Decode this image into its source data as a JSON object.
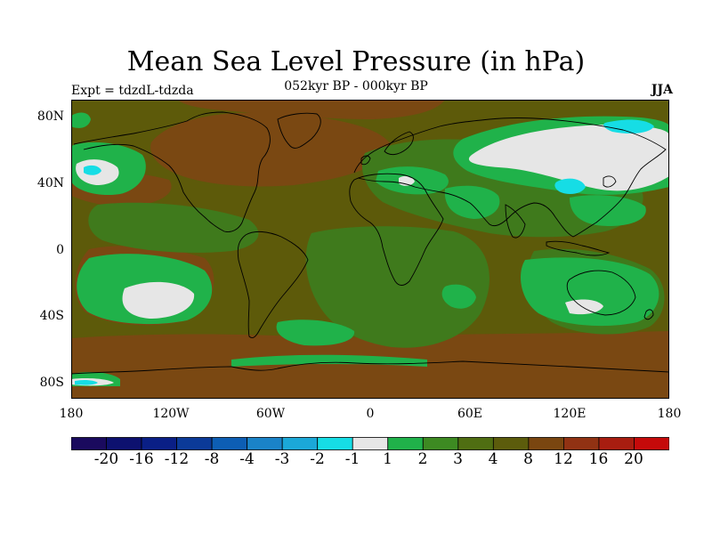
{
  "title": "Mean Sea Level Pressure (in hPa)",
  "subtitle": "052kyr BP - 000kyr BP",
  "experiment": "Expt = tdzdL-tdzda",
  "season": "JJA",
  "lat_labels": [
    "80N",
    "40N",
    "0",
    "40S",
    "80S"
  ],
  "lon_labels": [
    "180",
    "120W",
    "60W",
    "0",
    "60E",
    "120E",
    "180"
  ],
  "colorbar": {
    "labels": [
      "-20",
      "-16",
      "-12",
      "-8",
      "-4",
      "-3",
      "-2",
      "-1",
      "1",
      "2",
      "3",
      "4",
      "8",
      "12",
      "16",
      "20"
    ],
    "colors": [
      "#1a0a5e",
      "#0d116f",
      "#0a1f86",
      "#0b3a98",
      "#0d5eb4",
      "#1a83c8",
      "#1ba8d8",
      "#16dde5",
      "#e6e6e6",
      "#20b24a",
      "#3d8a22",
      "#4f6e12",
      "#5c5c0c",
      "#7a4610",
      "#913213",
      "#a81d10",
      "#c50a0a"
    ]
  },
  "colors": {
    "base_field": "#5d5a0a",
    "high_brown": "#7a4812",
    "dark_green": "#3f7a1c",
    "bright_green": "#20b24a",
    "white": "#e6e6e6",
    "cyan": "#16dde5"
  }
}
